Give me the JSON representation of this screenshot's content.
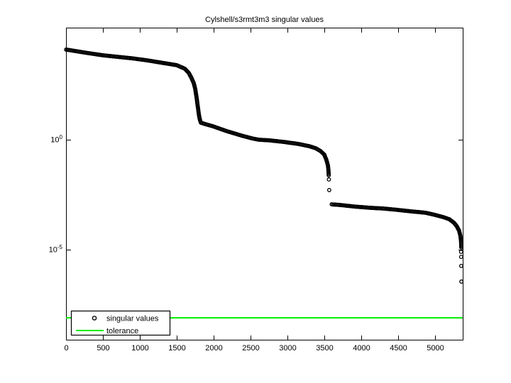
{
  "chart_data": {
    "type": "scatter",
    "title": "Cylshell/s3rmt3m3 singular values",
    "xlabel": "",
    "ylabel": "",
    "y_scale": "log10",
    "xlim": [
      0,
      5375
    ],
    "ylim_log10": [
      -9.1,
      5.1
    ],
    "x_ticks": [
      0,
      500,
      1000,
      1500,
      2000,
      2500,
      3000,
      3500,
      4000,
      4500,
      5000
    ],
    "y_ticks": [
      {
        "base": "10",
        "exp": "0"
      },
      {
        "base": "10",
        "exp": "-5"
      }
    ],
    "grid": false,
    "box": true,
    "legend_position": "south-west",
    "series": [
      {
        "name": "singular values",
        "marker": "circle",
        "color": "#000000",
        "segments_log10": [
          [
            [
              1,
              4.1
            ],
            [
              150,
              4.02
            ],
            [
              300,
              3.94
            ],
            [
              500,
              3.84
            ],
            [
              700,
              3.77
            ],
            [
              900,
              3.7
            ],
            [
              1100,
              3.61
            ],
            [
              1300,
              3.5
            ],
            [
              1500,
              3.39
            ],
            [
              1610,
              3.23
            ],
            [
              1665,
              3.03
            ],
            [
              1700,
              2.81
            ],
            [
              1730,
              2.58
            ],
            [
              1750,
              2.32
            ],
            [
              1770,
              1.9
            ],
            [
              1788,
              1.45
            ],
            [
              1798,
              1.19
            ],
            [
              1808,
              1.0
            ],
            [
              1818,
              0.87
            ],
            [
              1828,
              0.77
            ],
            [
              1990,
              0.61
            ],
            [
              2180,
              0.39
            ],
            [
              2375,
              0.19
            ],
            [
              2520,
              0.06
            ],
            [
              2615,
              0.0
            ],
            [
              2760,
              -0.03
            ],
            [
              2950,
              -0.1
            ],
            [
              3145,
              -0.19
            ],
            [
              3290,
              -0.29
            ],
            [
              3385,
              -0.39
            ],
            [
              3450,
              -0.52
            ],
            [
              3500,
              -0.68
            ],
            [
              3530,
              -0.94
            ],
            [
              3548,
              -1.16
            ],
            [
              3556,
              -1.39
            ],
            [
              3560,
              -1.62
            ]
          ],
          [
            [
              3600,
              -2.94
            ],
            [
              3720,
              -2.97
            ],
            [
              3910,
              -3.04
            ],
            [
              4100,
              -3.09
            ],
            [
              4300,
              -3.13
            ],
            [
              4490,
              -3.19
            ],
            [
              4680,
              -3.26
            ],
            [
              4870,
              -3.32
            ],
            [
              5000,
              -3.42
            ],
            [
              5110,
              -3.52
            ],
            [
              5190,
              -3.61
            ],
            [
              5255,
              -3.77
            ],
            [
              5295,
              -3.94
            ],
            [
              5325,
              -4.13
            ],
            [
              5342,
              -4.35
            ],
            [
              5352,
              -4.6
            ],
            [
              5356,
              -4.9
            ]
          ]
        ],
        "isolated_points_log10": [
          [
            3562,
            -1.81
          ],
          [
            3566,
            -2.29
          ],
          [
            5353,
            -5.1
          ],
          [
            5354,
            -5.33
          ],
          [
            5355,
            -5.74
          ],
          [
            5357,
            -6.45
          ]
        ]
      },
      {
        "name": "tolerance",
        "type": "hline",
        "color": "#00EE00",
        "value_log10": -8.1
      }
    ]
  }
}
